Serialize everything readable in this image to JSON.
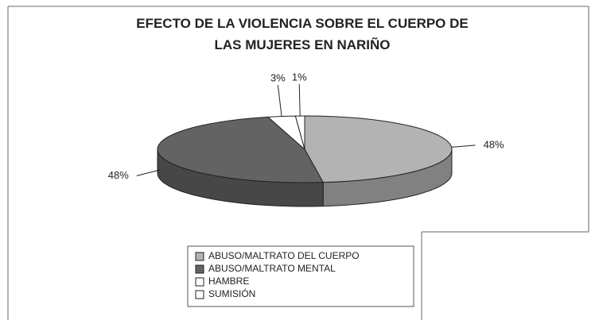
{
  "chart_data": {
    "type": "pie3d",
    "title": "EFECTO DE LA VIOLENCIA SOBRE EL CUERPO DE LAS MUJERES EN NARIÑO",
    "categories": [
      "ABUSO/MALTRATO DEL CUERPO",
      "ABUSO/MALTRATO MENTAL",
      "HAMBRE",
      "SUMISIÓN"
    ],
    "values": [
      48,
      48,
      3,
      1
    ],
    "value_labels": [
      "48%",
      "48%",
      "3%",
      "1%"
    ],
    "colors": [
      "#b3b3b3",
      "#636363",
      "#ffffff",
      "#ffffff"
    ]
  }
}
